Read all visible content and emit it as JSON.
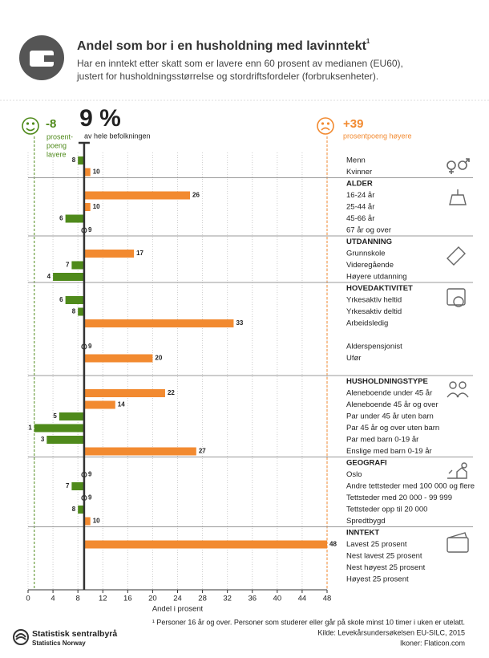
{
  "chart_data": {
    "type": "bar",
    "title": "Andel som bor i en husholdning med lavinntekt",
    "title_note": "1",
    "subtitle": [
      "Har en inntekt etter skatt som er lavere enn 60 prosent av medianen (EU60),",
      "justert for husholdningsstørrelse og stordriftsfordeler (forbruksenheter)."
    ],
    "reference": {
      "value": 9,
      "label": "9 %"
    },
    "reference_label": "av hele befolkningen",
    "low_annotation": {
      "text": "-8",
      "note": [
        "prosent-",
        "poeng",
        "lavere"
      ]
    },
    "high_annotation": {
      "text": "+39",
      "note": "prosentpoeng høyere"
    },
    "colors": {
      "below": "#4f8a1b",
      "above": "#f28a30"
    },
    "xlabel": "Andel i prosent",
    "xlim": [
      0,
      48
    ],
    "xticks": [
      0,
      4,
      8,
      12,
      16,
      20,
      24,
      28,
      32,
      36,
      40,
      44,
      48
    ],
    "grid": true,
    "groups": [
      {
        "categories": [
          "Menn",
          "Kvinner"
        ],
        "values": [
          8,
          10
        ]
      },
      {
        "name": "ALDER",
        "categories": [
          "16-24 år",
          "25-44 år",
          "45-66 år",
          "67 år og over"
        ],
        "values": [
          26,
          10,
          6,
          9
        ]
      },
      {
        "name": "UTDANNING",
        "categories": [
          "Grunnskole",
          "Videregående",
          "Høyere utdanning"
        ],
        "values": [
          17,
          7,
          4
        ]
      },
      {
        "name": "HOVEDAKTIVITET",
        "categories": [
          "Yrkesaktiv heltid",
          "Yrkesaktiv deltid",
          "Arbeidsledig",
          null,
          "Alderspensjonist",
          "Ufør",
          null
        ],
        "values": [
          6,
          8,
          33,
          null,
          9,
          20,
          null
        ]
      },
      {
        "name": "HUSHOLDNINGSTYPE",
        "categories": [
          "Aleneboende under 45 år",
          "Aleneboende 45 år og over",
          "Par under 45 år uten barn",
          "Par 45 år og over uten barn",
          "Par med barn 0-19 år",
          "Enslige med barn 0-19 år"
        ],
        "values": [
          22,
          14,
          5,
          1,
          3,
          27
        ]
      },
      {
        "name": "GEOGRAFI",
        "categories": [
          "Oslo",
          "Andre tettsteder med 100 000 og flere",
          "Tettsteder med 20 000 - 99 999",
          "Tettsteder opp til 20 000",
          "Spredtbygd"
        ],
        "values": [
          9,
          7,
          9,
          8,
          10
        ]
      },
      {
        "name": "INNTEKT",
        "categories": [
          "Lavest 25 prosent",
          "Nest lavest 25 prosent",
          "Nest høyest 25 prosent",
          "Høyest 25 prosent"
        ],
        "values": [
          48,
          null,
          null,
          null
        ]
      }
    ],
    "footnote": "¹ Personer 16 år og over. Personer som studerer eller går på skole minst 10 timer i uken er utelatt.",
    "source": "Kilde: Levekårsundersøkelsen EU-SILC, 2015",
    "credits": "Ikoner: Flaticon.com",
    "logo": [
      "Statistisk sentralbyrå",
      "Statistics Norway"
    ]
  }
}
